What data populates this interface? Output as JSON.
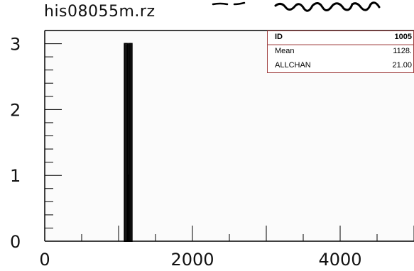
{
  "header": {
    "title": "his08055m.rz"
  },
  "stats_box": {
    "rows": [
      {
        "label": "ID",
        "value": "1005"
      },
      {
        "label": "Mean",
        "value": "1128."
      },
      {
        "label": "ALLCHAN",
        "value": "21.00"
      }
    ],
    "border_color": "#a04040"
  },
  "chart_data": {
    "type": "bar",
    "title": "his08055m.rz",
    "xlabel": "",
    "ylabel": "",
    "xlim": [
      0,
      5000
    ],
    "ylim": [
      0,
      3.2
    ],
    "x_ticks": [
      0,
      2000,
      4000
    ],
    "x_tick_labels": [
      "0",
      "2000",
      "4000"
    ],
    "y_ticks": [
      0,
      1,
      2,
      3
    ],
    "y_tick_labels": [
      "0",
      "1",
      "2",
      "3"
    ],
    "bin_width": 20,
    "bins": [
      {
        "x": 1080,
        "value": 3
      },
      {
        "x": 1100,
        "value": 3
      },
      {
        "x": 1120,
        "value": 1
      },
      {
        "x": 1140,
        "value": 3
      },
      {
        "x": 1160,
        "value": 3
      }
    ],
    "grid": false,
    "legend": "none"
  }
}
